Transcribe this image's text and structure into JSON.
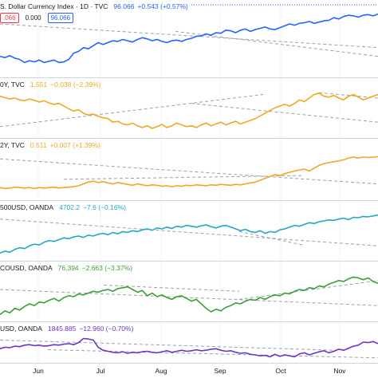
{
  "panes": [
    {
      "id": "dxy",
      "symbol": "S. Dollar Currency Index · 1D · TVC",
      "last": "96.066",
      "change": "+0.543 (+0.57%)",
      "color": "#2962ff",
      "extra_boxes": [
        {
          "text": ".066",
          "color": "#f23645"
        },
        {
          "text": "0.000",
          "color": "none"
        },
        {
          "text": "96.066",
          "color": "#2962ff"
        }
      ],
      "series": [
        30,
        28,
        31,
        27,
        25,
        20,
        23,
        21,
        24,
        20,
        22,
        24,
        20,
        21,
        25,
        35,
        38,
        44,
        42,
        47,
        52,
        49,
        52,
        55,
        54,
        57,
        55,
        53,
        57,
        60,
        58,
        55,
        57,
        54,
        52,
        55,
        56,
        54,
        57,
        59,
        62,
        63,
        66,
        64,
        68,
        67,
        72,
        71,
        68,
        72,
        74,
        70,
        73,
        75,
        77,
        74,
        73,
        76,
        79,
        82,
        80,
        83,
        84,
        86,
        83,
        85,
        87,
        88,
        92,
        90,
        94,
        96,
        95,
        93,
        96,
        97,
        95,
        98
      ]
    },
    {
      "id": "us10y",
      "symbol": "0Y, TVC",
      "last": "1.551",
      "change": "−0.038 (−2.39%)",
      "color": "#f0a724",
      "extra_boxes": [],
      "series": [
        88,
        85,
        82,
        84,
        80,
        78,
        82,
        79,
        75,
        78,
        73,
        70,
        72,
        66,
        60,
        55,
        58,
        50,
        46,
        48,
        43,
        40,
        38,
        30,
        32,
        26,
        24,
        28,
        22,
        18,
        22,
        16,
        20,
        25,
        18,
        22,
        28,
        24,
        20,
        22,
        18,
        24,
        28,
        22,
        26,
        30,
        24,
        28,
        32,
        26,
        30,
        34,
        38,
        44,
        50,
        56,
        62,
        66,
        70,
        66,
        72,
        80,
        76,
        84,
        92,
        95,
        88,
        86,
        90,
        84,
        80,
        88,
        92,
        86,
        80,
        84,
        88,
        92
      ]
    },
    {
      "id": "us02y",
      "symbol": "2Y, TVC",
      "last": "0.511",
      "change": "+0.007 (+1.39%)",
      "color": "#f0a724",
      "extra_boxes": [],
      "series": [
        22,
        20,
        21,
        23,
        22,
        21,
        22,
        20,
        22,
        21,
        22,
        23,
        21,
        22,
        23,
        24,
        26,
        30,
        34,
        36,
        33,
        35,
        32,
        30,
        33,
        31,
        29,
        27,
        30,
        28,
        26,
        28,
        27,
        25,
        26,
        24,
        26,
        25,
        27,
        26,
        28,
        27,
        26,
        28,
        27,
        29,
        28,
        27,
        29,
        28,
        30,
        32,
        34,
        38,
        42,
        46,
        50,
        48,
        52,
        55,
        58,
        60,
        62,
        58,
        64,
        70,
        74,
        76,
        78,
        80,
        82,
        86,
        88,
        86,
        88,
        87,
        88,
        89
      ]
    },
    {
      "id": "spx",
      "symbol": "500USD, OANDA",
      "last": "4702.2",
      "change": "−7.6 (−0.16%)",
      "color": "#22a7c3",
      "extra_boxes": [],
      "series": [
        12,
        16,
        14,
        20,
        24,
        22,
        28,
        32,
        30,
        36,
        40,
        38,
        42,
        46,
        44,
        48,
        50,
        47,
        52,
        50,
        54,
        56,
        53,
        58,
        55,
        60,
        58,
        62,
        60,
        64,
        66,
        63,
        68,
        66,
        70,
        67,
        72,
        70,
        74,
        72,
        70,
        73,
        75,
        71,
        68,
        72,
        74,
        70,
        66,
        62,
        65,
        60,
        58,
        62,
        56,
        60,
        58,
        64,
        66,
        70,
        74,
        72,
        76,
        80,
        78,
        82,
        84,
        86,
        85,
        88,
        90,
        87,
        92,
        91,
        94,
        93,
        95,
        97
      ]
    },
    {
      "id": "oil",
      "symbol": "COUSD, OANDA",
      "last": "76.394",
      "change": "−2.663 (−3.37%)",
      "color": "#3c9e36",
      "extra_boxes": [],
      "series": [
        10,
        18,
        14,
        24,
        20,
        28,
        34,
        30,
        38,
        36,
        42,
        46,
        40,
        48,
        52,
        50,
        56,
        54,
        58,
        62,
        60,
        64,
        66,
        62,
        68,
        70,
        72,
        66,
        60,
        64,
        52,
        58,
        50,
        54,
        48,
        44,
        50,
        52,
        46,
        40,
        44,
        34,
        24,
        16,
        22,
        18,
        26,
        30,
        36,
        34,
        40,
        44,
        42,
        48,
        44,
        50,
        54,
        52,
        58,
        56,
        62,
        66,
        64,
        70,
        68,
        74,
        72,
        78,
        82,
        86,
        84,
        90,
        94,
        92,
        88,
        92,
        84,
        80
      ]
    },
    {
      "id": "gold",
      "symbol": "USD, OANDA",
      "last": "1845.885",
      "change": "−12.960 (−0.70%)",
      "color": "#6a35c9",
      "extra_boxes": [],
      "series": [
        46,
        52,
        50,
        56,
        54,
        60,
        62,
        58,
        60,
        56,
        58,
        62,
        60,
        64,
        66,
        62,
        70,
        86,
        84,
        80,
        52,
        40,
        36,
        32,
        30,
        34,
        28,
        32,
        30,
        34,
        36,
        32,
        30,
        34,
        38,
        32,
        36,
        40,
        36,
        38,
        42,
        38,
        40,
        44,
        46,
        40,
        36,
        38,
        32,
        28,
        30,
        24,
        22,
        18,
        20,
        14,
        24,
        16,
        22,
        18,
        14,
        26,
        30,
        22,
        28,
        34,
        38,
        30,
        36,
        44,
        40,
        48,
        56,
        60,
        72,
        70,
        74,
        66
      ]
    }
  ],
  "x_axis": [
    "Jun",
    "Jul",
    "Aug",
    "Sep",
    "Oct",
    "Nov"
  ]
}
